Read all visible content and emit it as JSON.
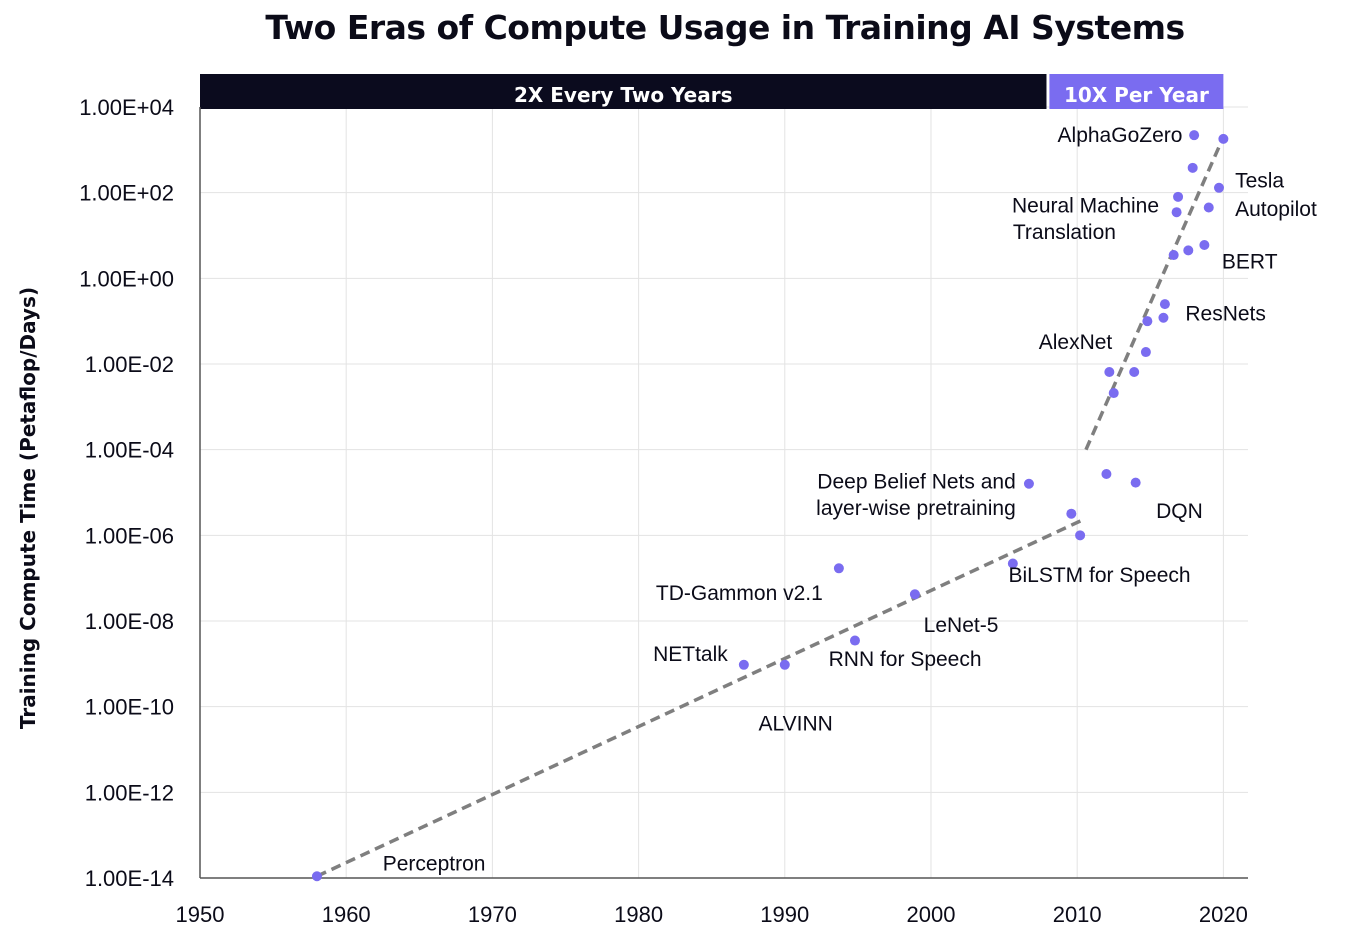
{
  "chart_data": {
    "type": "scatter",
    "title": "Two Eras of Compute Usage in Training AI Systems",
    "ylabel": "Training Compute Time (Petaflop/Days)",
    "xlabel": "",
    "yscale": "log",
    "xlim": [
      1950,
      2021
    ],
    "ylim": [
      1e-14,
      10000.0
    ],
    "x_ticks": [
      "1950",
      "1960",
      "1970",
      "1980",
      "1990",
      "2000",
      "2010",
      "2020"
    ],
    "y_ticks": [
      "1.00E-14",
      "1.00E-12",
      "1.00E-10",
      "1.00E-08",
      "1.00E-06",
      "1.00E-04",
      "1.00E-02",
      "1.00E+00",
      "1.00E+02",
      "1.00E+04"
    ],
    "grid": true,
    "eras": [
      {
        "label": "2X Every Two Years",
        "from": 1950,
        "to": 2007.9,
        "color": "#0b0b1e"
      },
      {
        "label": "10X Per Year",
        "from": 2008.1,
        "to": 2020.0,
        "color": "#7a6cf0"
      }
    ],
    "trendlines": [
      {
        "x": [
          1958,
          2010.5
        ],
        "y": [
          1.1e-14,
          2.4e-06
        ]
      },
      {
        "x": [
          2010.6,
          2020.0
        ],
        "y": [
          0.0001,
          2000.0
        ]
      }
    ],
    "point_color": "#7a6cf0",
    "trend_color": "#7f7f7f",
    "points": [
      {
        "x": 1958.0,
        "y": 1.1e-14
      },
      {
        "x": 1987.2,
        "y": 9.5e-10
      },
      {
        "x": 1990.0,
        "y": 9.5e-10
      },
      {
        "x": 1993.7,
        "y": 1.7e-07
      },
      {
        "x": 1994.8,
        "y": 3.5e-09
      },
      {
        "x": 1998.9,
        "y": 4.2e-08
      },
      {
        "x": 2005.6,
        "y": 2.2e-07
      },
      {
        "x": 2006.7,
        "y": 1.6e-05
      },
      {
        "x": 2009.6,
        "y": 3.2e-06
      },
      {
        "x": 2010.2,
        "y": 1e-06
      },
      {
        "x": 2012.0,
        "y": 2.7e-05
      },
      {
        "x": 2012.2,
        "y": 0.0065
      },
      {
        "x": 2012.5,
        "y": 0.0021
      },
      {
        "x": 2013.9,
        "y": 0.0065
      },
      {
        "x": 2014.0,
        "y": 1.7e-05
      },
      {
        "x": 2014.7,
        "y": 0.019
      },
      {
        "x": 2014.8,
        "y": 0.1
      },
      {
        "x": 2015.9,
        "y": 0.12
      },
      {
        "x": 2016.0,
        "y": 0.25
      },
      {
        "x": 2016.6,
        "y": 3.5
      },
      {
        "x": 2016.8,
        "y": 35
      },
      {
        "x": 2016.9,
        "y": 80
      },
      {
        "x": 2017.6,
        "y": 4.5
      },
      {
        "x": 2017.9,
        "y": 380
      },
      {
        "x": 2018.0,
        "y": 2200
      },
      {
        "x": 2018.7,
        "y": 6.0
      },
      {
        "x": 2019.0,
        "y": 45
      },
      {
        "x": 2019.7,
        "y": 130
      },
      {
        "x": 2020.0,
        "y": 1800
      }
    ],
    "annotations": [
      {
        "text": "Perceptron",
        "x": 1962.5,
        "y": 2.2e-14,
        "anchor": "start"
      },
      {
        "text": "NETtalk",
        "x": 1986.1,
        "y": 1.7e-09,
        "anchor": "end"
      },
      {
        "text": "ALVINN",
        "x": 1988.2,
        "y": 4e-11,
        "anchor": "start"
      },
      {
        "text": "TD-Gammon v2.1",
        "x": 1992.6,
        "y": 4.5e-08,
        "anchor": "end"
      },
      {
        "text": "RNN for Speech",
        "x": 1993.0,
        "y": 1.3e-09,
        "anchor": "start"
      },
      {
        "text": "LeNet-5",
        "x": 1999.5,
        "y": 8e-09,
        "anchor": "start"
      },
      {
        "text": "BiLSTM for Speech",
        "x": 2005.3,
        "y": 1.2e-07,
        "anchor": "start"
      },
      {
        "text": "Deep Belief Nets and",
        "x": 2005.8,
        "y": 1.8e-05,
        "anchor": "end"
      },
      {
        "text": "layer-wise pretraining",
        "x": 2005.8,
        "y": 4.3e-06,
        "anchor": "end"
      },
      {
        "text": "DQN",
        "x": 2015.4,
        "y": 3.7e-06,
        "anchor": "start"
      },
      {
        "text": "AlexNet",
        "x": 2012.4,
        "y": 0.033,
        "anchor": "end"
      },
      {
        "text": "ResNets",
        "x": 2017.4,
        "y": 0.15,
        "anchor": "start"
      },
      {
        "text": "Neural Machine",
        "x": 2015.6,
        "y": 50,
        "anchor": "end"
      },
      {
        "text": "Translation",
        "x": 2005.6,
        "y": 12,
        "anchor": "start"
      },
      {
        "text": "BERT",
        "x": 2019.9,
        "y": 2.5,
        "anchor": "start"
      },
      {
        "text": "Tesla",
        "x": 2020.8,
        "y": 190,
        "anchor": "start"
      },
      {
        "text": "Autopilot",
        "x": 2020.8,
        "y": 42,
        "anchor": "start"
      },
      {
        "text": "AlphaGoZero",
        "x": 2017.2,
        "y": 2200,
        "anchor": "end"
      }
    ]
  }
}
